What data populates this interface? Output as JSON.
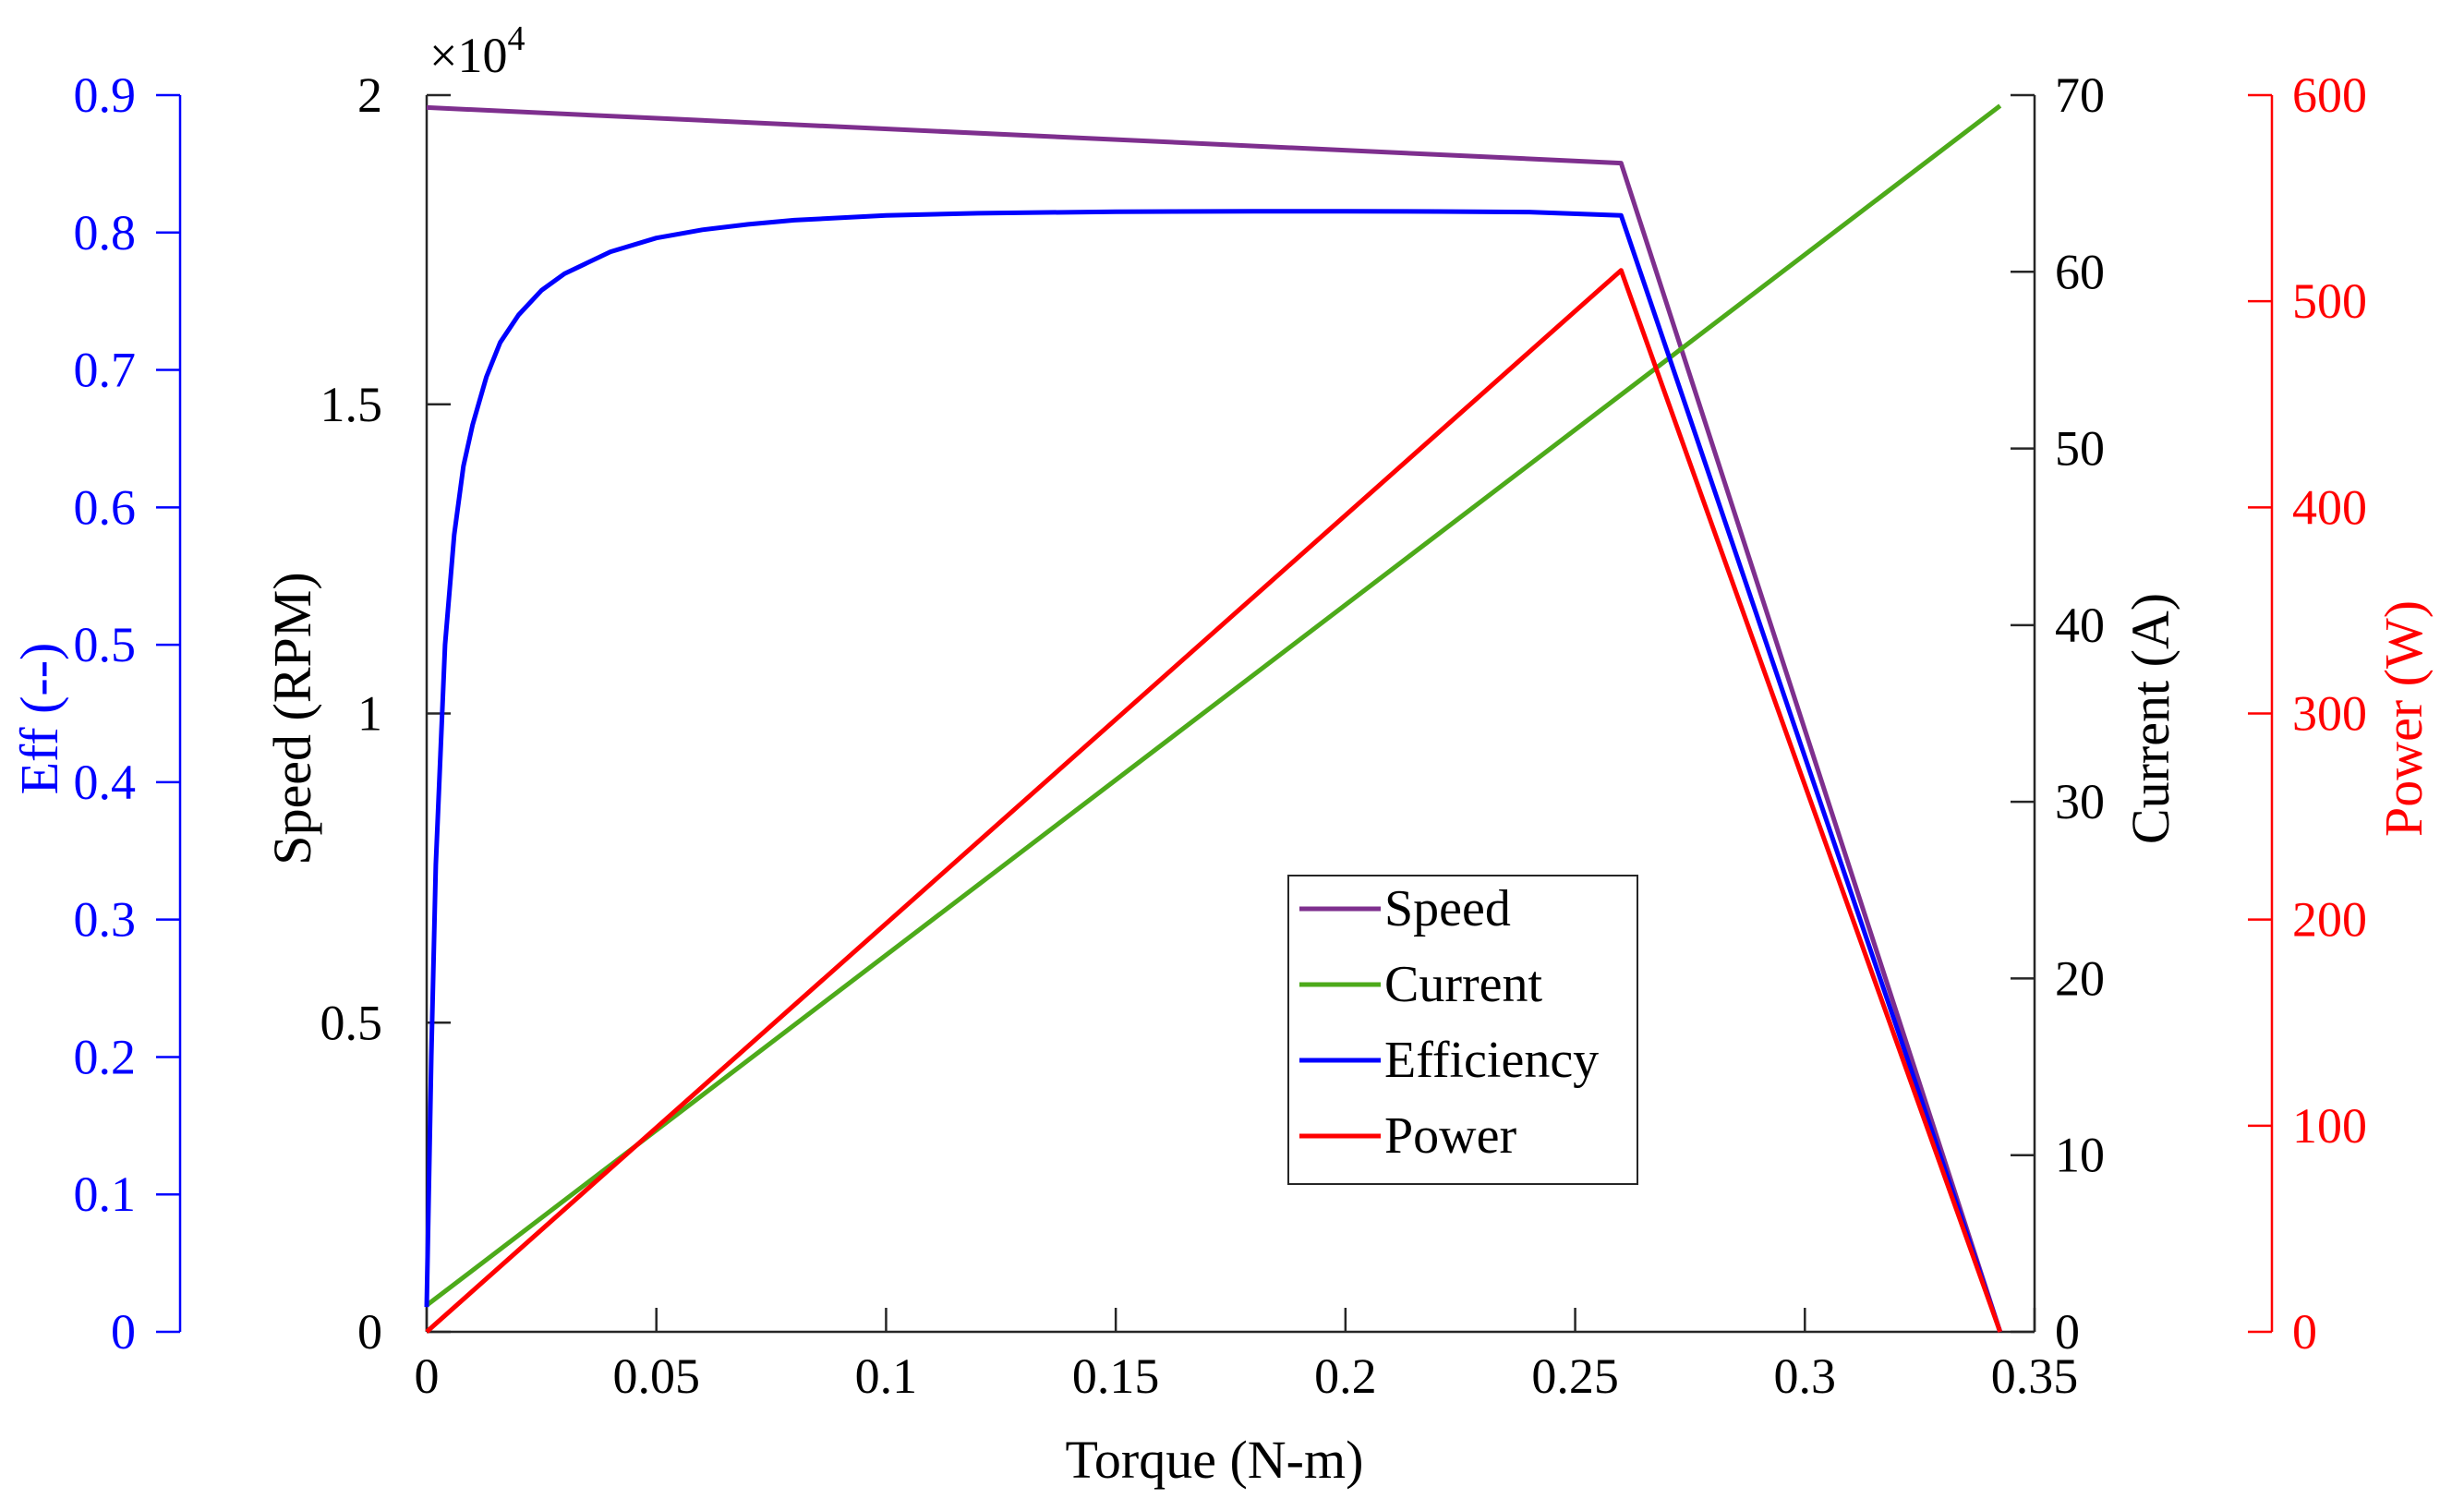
{
  "chart_data": {
    "type": "line",
    "xlabel": "Torque (N-m)",
    "x_ticks": [
      "0",
      "0.05",
      "0.1",
      "0.15",
      "0.2",
      "0.25",
      "0.3",
      "0.35"
    ],
    "x_tick_values": [
      0,
      0.05,
      0.1,
      0.15,
      0.2,
      0.25,
      0.3,
      0.35
    ],
    "xlim": [
      0,
      0.35
    ],
    "axes": {
      "eff": {
        "label": "Eff (--)",
        "ylim": [
          0,
          0.9
        ],
        "ticks": [
          "0",
          "0.1",
          "0.2",
          "0.3",
          "0.4",
          "0.5",
          "0.6",
          "0.7",
          "0.8",
          "0.9"
        ],
        "tick_values": [
          0,
          0.1,
          0.2,
          0.3,
          0.4,
          0.5,
          0.6,
          0.7,
          0.8,
          0.9
        ],
        "color": "#0000ff"
      },
      "speed": {
        "label": "Speed (RPM)",
        "ylim": [
          0,
          2
        ],
        "exponent_base": "×10",
        "exponent_power": "4",
        "ticks": [
          "0",
          "0.5",
          "1",
          "1.5",
          "2"
        ],
        "tick_values": [
          0,
          0.5,
          1,
          1.5,
          2
        ],
        "color": "#000000"
      },
      "current": {
        "label": "Current (A)",
        "ylim": [
          0,
          70
        ],
        "ticks": [
          "0",
          "10",
          "20",
          "30",
          "40",
          "50",
          "60",
          "70"
        ],
        "tick_values": [
          0,
          10,
          20,
          30,
          40,
          50,
          60,
          70
        ],
        "color": "#000000"
      },
      "power": {
        "label": "Power (W)",
        "ylim": [
          0,
          600
        ],
        "ticks": [
          "0",
          "100",
          "200",
          "300",
          "400",
          "500",
          "600"
        ],
        "tick_values": [
          0,
          100,
          200,
          300,
          400,
          500,
          600
        ],
        "color": "#ff0000"
      }
    },
    "series": [
      {
        "name": "Speed",
        "axis": "speed",
        "color": "#7e2f8e",
        "x": [
          0,
          0.26,
          0.3425
        ],
        "y": [
          1.98,
          1.89,
          0
        ]
      },
      {
        "name": "Current",
        "axis": "current",
        "color": "#4daa1a",
        "x": [
          0,
          0.3425
        ],
        "y": [
          1.5,
          69.4
        ]
      },
      {
        "name": "Efficiency",
        "axis": "eff",
        "color": "#0000ff",
        "x": [
          0,
          0.001,
          0.002,
          0.004,
          0.006,
          0.008,
          0.01,
          0.013,
          0.016,
          0.02,
          0.025,
          0.03,
          0.04,
          0.05,
          0.06,
          0.07,
          0.08,
          0.1,
          0.12,
          0.15,
          0.18,
          0.2,
          0.22,
          0.24,
          0.26,
          0.3425
        ],
        "y": [
          0.018,
          0.2,
          0.34,
          0.5,
          0.58,
          0.63,
          0.66,
          0.695,
          0.72,
          0.74,
          0.758,
          0.77,
          0.786,
          0.796,
          0.802,
          0.806,
          0.809,
          0.8125,
          0.814,
          0.8152,
          0.8155,
          0.8155,
          0.8153,
          0.8149,
          0.8125,
          0
        ]
      },
      {
        "name": "Power",
        "axis": "power",
        "color": "#ff0000",
        "x": [
          0,
          0.26,
          0.3425
        ],
        "y": [
          0,
          515,
          0
        ]
      }
    ],
    "legend": {
      "position": "center-bottom",
      "entries": [
        "Speed",
        "Current",
        "Efficiency",
        "Power"
      ]
    }
  }
}
